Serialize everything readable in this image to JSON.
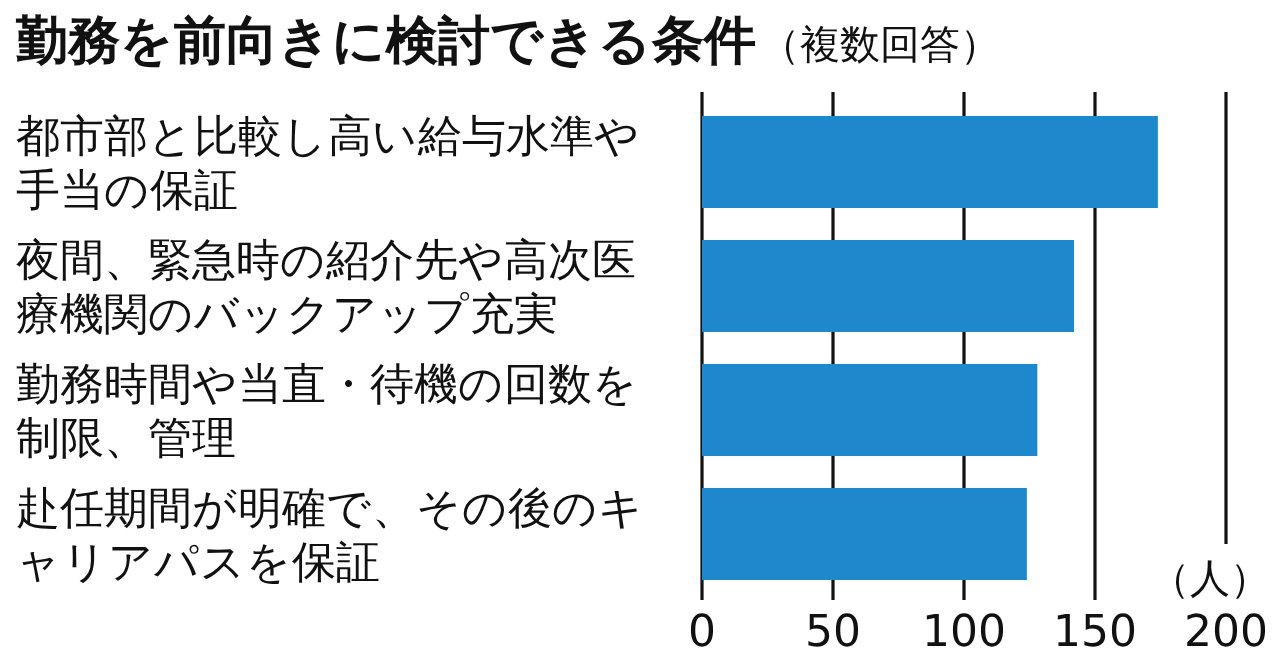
{
  "chart_data": {
    "type": "bar",
    "orientation": "horizontal",
    "title": "勤務を前向きに検討できる条件",
    "subtitle": "（複数回答）",
    "xlabel": "（人）",
    "categories": [
      "都市部と比較し高い給与水準や手当の保証",
      "夜間、緊急時の紹介先や高次医療機関のバックアップ充実",
      "勤務時間や当直・待機の回数を制限、管理",
      "赴任期間が明確で、その後のキャリアパスを保証"
    ],
    "values": [
      174,
      142,
      128,
      124
    ],
    "color": "#1e88cc",
    "xlim": [
      0,
      200
    ],
    "xticks": [
      0,
      50,
      100,
      150,
      200
    ],
    "grid": "x"
  }
}
